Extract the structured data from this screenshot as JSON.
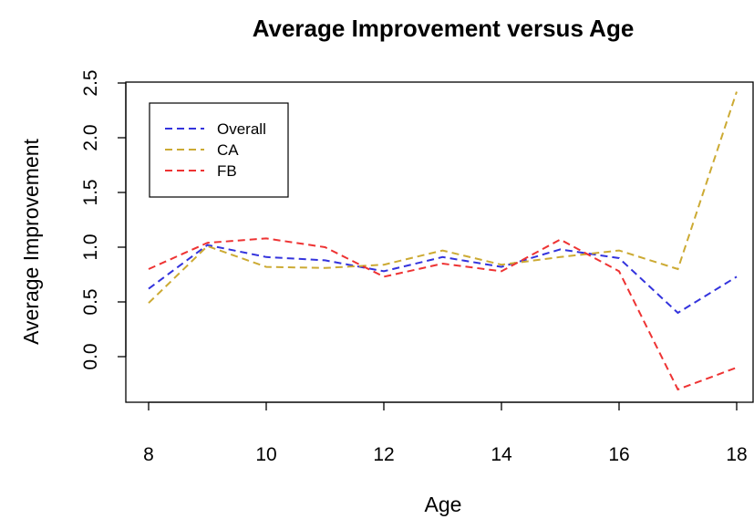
{
  "chart_data": {
    "type": "line",
    "title": "Average Improvement versus Age",
    "xlabel": "Age",
    "ylabel": "Average Improvement",
    "x": [
      8,
      9,
      10,
      11,
      12,
      13,
      14,
      15,
      16,
      17,
      18
    ],
    "xlim": [
      8,
      18
    ],
    "ylim": [
      -0.3,
      2.5
    ],
    "xticks": [
      8,
      10,
      12,
      14,
      16,
      18
    ],
    "yticks": [
      0.0,
      0.5,
      1.0,
      1.5,
      2.0,
      2.5
    ],
    "xtick_labels": [
      "8",
      "10",
      "12",
      "14",
      "16",
      "18"
    ],
    "ytick_labels": [
      "0.0",
      "0.5",
      "1.0",
      "1.5",
      "2.0",
      "2.5"
    ],
    "grid": false,
    "legend_position": "top-left",
    "line_style": "dashed",
    "series": [
      {
        "name": "Overall",
        "color": "#3333dd",
        "values": [
          0.62,
          1.02,
          0.91,
          0.88,
          0.78,
          0.91,
          0.82,
          0.98,
          0.9,
          0.4,
          0.73
        ]
      },
      {
        "name": "CA",
        "color": "#ccaa33",
        "values": [
          0.49,
          1.01,
          0.82,
          0.81,
          0.84,
          0.97,
          0.84,
          0.91,
          0.97,
          0.8,
          2.42
        ]
      },
      {
        "name": "FB",
        "color": "#ee3333",
        "values": [
          0.8,
          1.04,
          1.08,
          1.0,
          0.73,
          0.85,
          0.78,
          1.07,
          0.78,
          -0.3,
          -0.1
        ]
      }
    ]
  }
}
